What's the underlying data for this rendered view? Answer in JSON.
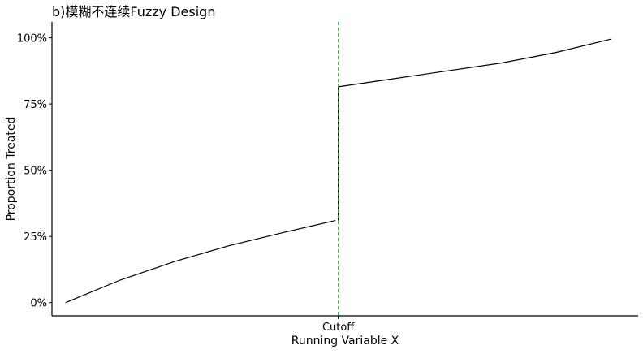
{
  "chart_data": {
    "type": "line",
    "title": "b)模糊不连续Fuzzy Design",
    "xlabel": "Running Variable X",
    "ylabel": "Proportion Treated",
    "x_tick_labels": [
      "Cutoff"
    ],
    "y_tick_labels": [
      "0%",
      "25%",
      "50%",
      "75%",
      "100%"
    ],
    "y_ticks": [
      0,
      0.25,
      0.5,
      0.75,
      1.0
    ],
    "xlim": [
      -1.05,
      1.1
    ],
    "ylim": [
      -0.05,
      1.06
    ],
    "cutoff": 0,
    "grid": false,
    "cutoff_line_color": "#00cc00",
    "series_color": "#000000",
    "series": [
      {
        "x": [
          -1.0,
          -0.8,
          -0.6,
          -0.4,
          -0.2,
          -0.01
        ],
        "y": [
          0.0,
          0.085,
          0.155,
          0.215,
          0.265,
          0.31
        ]
      },
      {
        "x": [
          0.0,
          0.2,
          0.4,
          0.6,
          0.8,
          1.0
        ],
        "y": [
          0.815,
          0.845,
          0.875,
          0.905,
          0.945,
          0.995
        ]
      }
    ],
    "jump": {
      "x": 0.0,
      "y_from": 0.31,
      "y_to": 0.815
    }
  }
}
